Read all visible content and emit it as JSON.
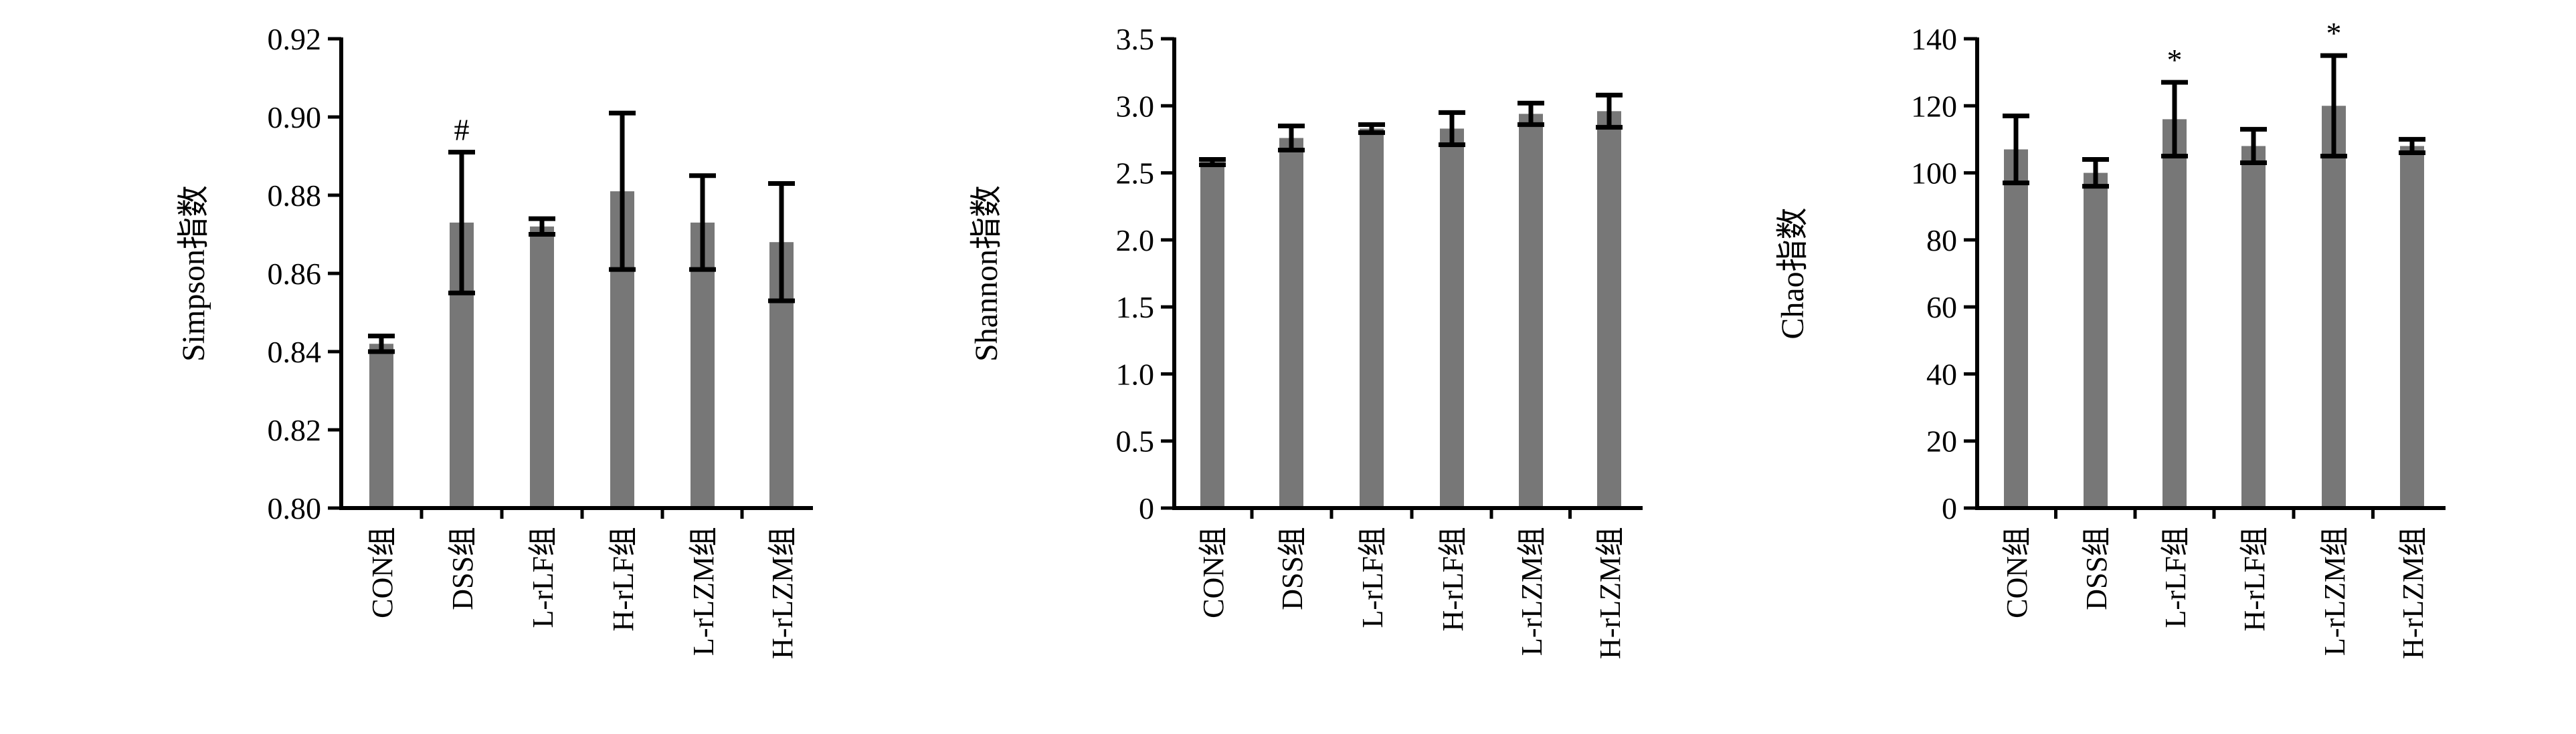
{
  "figure": {
    "colors": {
      "bar": "#777777",
      "axis": "#000000",
      "error": "#000000"
    }
  },
  "chart_data": [
    {
      "type": "bar",
      "ylabel": "Simpson指数",
      "xlabel": "",
      "categories": [
        "CON组",
        "DSS组",
        "L-rLF组",
        "H-rLF组",
        "L-rLZM组",
        "H-rLZM组"
      ],
      "values": [
        0.842,
        0.873,
        0.872,
        0.881,
        0.873,
        0.868
      ],
      "errors": [
        0.002,
        0.018,
        0.002,
        0.02,
        0.012,
        0.015
      ],
      "annotations": [
        "",
        "#",
        "",
        "",
        "",
        ""
      ],
      "ylim": [
        0.8,
        0.92
      ],
      "yticks": [
        0.8,
        0.82,
        0.84,
        0.86,
        0.88,
        0.9,
        0.92
      ],
      "ytick_labels": [
        "0.80",
        "0.82",
        "0.84",
        "0.86",
        "0.88",
        "0.90",
        "0.92"
      ],
      "grid": false
    },
    {
      "type": "bar",
      "ylabel": "Shannon指数",
      "xlabel": "",
      "categories": [
        "CON组",
        "DSS组",
        "L-rLF组",
        "H-rLF组",
        "L-rLZM组",
        "H-rLZM组"
      ],
      "values": [
        2.58,
        2.76,
        2.83,
        2.83,
        2.94,
        2.96
      ],
      "errors": [
        0.02,
        0.09,
        0.03,
        0.12,
        0.08,
        0.12
      ],
      "annotations": [
        "",
        "",
        "",
        "",
        "",
        ""
      ],
      "ylim": [
        0,
        3.5
      ],
      "yticks": [
        0,
        0.5,
        1.0,
        1.5,
        2.0,
        2.5,
        3.0,
        3.5
      ],
      "ytick_labels": [
        "0",
        "0.5",
        "1.0",
        "1.5",
        "2.0",
        "2.5",
        "3.0",
        "3.5"
      ],
      "grid": false
    },
    {
      "type": "bar",
      "ylabel": "Chao指数",
      "xlabel": "",
      "categories": [
        "CON组",
        "DSS组",
        "L-rLF组",
        "H-rLF组",
        "L-rLZM组",
        "H-rLZM组"
      ],
      "values": [
        107,
        100,
        116,
        108,
        120,
        108
      ],
      "errors": [
        10,
        4,
        11,
        5,
        15,
        2
      ],
      "annotations": [
        "",
        "",
        "*",
        "",
        "*",
        ""
      ],
      "ylim": [
        0,
        140
      ],
      "yticks": [
        0,
        20,
        40,
        60,
        80,
        100,
        120,
        140
      ],
      "ytick_labels": [
        "0",
        "20",
        "40",
        "60",
        "80",
        "100",
        "120",
        "140"
      ],
      "grid": false
    }
  ]
}
